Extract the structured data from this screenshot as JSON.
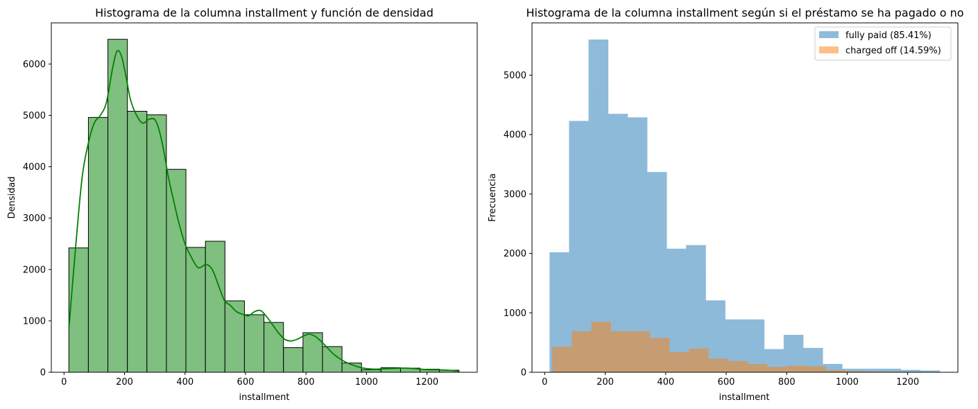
{
  "chart_data": [
    {
      "type": "bar",
      "title": "Histograma de la columna installment y función de densidad",
      "xlabel": "installment",
      "ylabel": "Densidad",
      "xlim": [
        -42,
        1366
      ],
      "ylim": [
        0,
        6800
      ],
      "xticks": [
        "0",
        "200",
        "400",
        "600",
        "800",
        "1000",
        "1200"
      ],
      "xtick_values": [
        0,
        200,
        400,
        600,
        800,
        1000,
        1200
      ],
      "yticks": [
        "0",
        "1000",
        "2000",
        "3000",
        "4000",
        "5000",
        "6000"
      ],
      "ytick_values": [
        0,
        1000,
        2000,
        3000,
        4000,
        5000,
        6000
      ],
      "bin_start": 16,
      "bin_width": 64.5,
      "values": [
        2420,
        4960,
        6480,
        5080,
        5010,
        3950,
        2430,
        2550,
        1390,
        1120,
        970,
        480,
        770,
        500,
        180,
        50,
        90,
        80,
        60,
        40
      ],
      "colors": {
        "bar": "#7fbf7f",
        "edge": "#000000",
        "kde": "#008000"
      },
      "kde": {
        "x": [
          16,
          40,
          60,
          80,
          100,
          120,
          140,
          160,
          175,
          190,
          205,
          220,
          240,
          260,
          280,
          300,
          315,
          330,
          345,
          360,
          380,
          400,
          420,
          440,
          455,
          470,
          490,
          510,
          530,
          550,
          570,
          590,
          610,
          630,
          650,
          670,
          690,
          710,
          730,
          750,
          770,
          790,
          810,
          830,
          850,
          870,
          890,
          910,
          930,
          950,
          970,
          990,
          1010,
          1030,
          1050,
          1070,
          1090,
          1110,
          1130,
          1150,
          1170,
          1190,
          1210,
          1230,
          1250,
          1270,
          1290,
          1306
        ],
        "y": [
          850,
          2550,
          3800,
          4450,
          4850,
          5000,
          5250,
          5900,
          6250,
          6150,
          5750,
          5300,
          5000,
          4850,
          4920,
          4920,
          4700,
          4300,
          3800,
          3400,
          2900,
          2500,
          2250,
          2050,
          2050,
          2100,
          2000,
          1700,
          1400,
          1300,
          1180,
          1130,
          1100,
          1180,
          1200,
          1080,
          920,
          760,
          640,
          610,
          640,
          700,
          740,
          700,
          600,
          480,
          360,
          270,
          200,
          150,
          110,
          80,
          65,
          60,
          65,
          70,
          75,
          80,
          80,
          75,
          65,
          55,
          50,
          48,
          45,
          40,
          30,
          20
        ]
      }
    },
    {
      "type": "bar",
      "title": "Histograma de la columna installment según si el préstamo se ha pagado o no",
      "xlabel": "installment",
      "ylabel": "Frecuencia",
      "xlim": [
        -42,
        1366
      ],
      "ylim": [
        0,
        5880
      ],
      "xticks": [
        "0",
        "200",
        "400",
        "600",
        "800",
        "1000",
        "1200"
      ],
      "xtick_values": [
        0,
        200,
        400,
        600,
        800,
        1000,
        1200
      ],
      "yticks": [
        "0",
        "1000",
        "2000",
        "3000",
        "4000",
        "5000"
      ],
      "ytick_values": [
        0,
        1000,
        2000,
        3000,
        4000,
        5000
      ],
      "legend_position": "top-right",
      "series": [
        {
          "name": "fully paid (85.41%)",
          "color": "#1f77b4",
          "opacity": 0.5,
          "bin_start": 16,
          "bin_width": 64.5,
          "values": [
            2020,
            4230,
            5600,
            4350,
            4290,
            3370,
            2080,
            2140,
            1210,
            890,
            890,
            390,
            630,
            410,
            140,
            60,
            60,
            60,
            40,
            30
          ]
        },
        {
          "name": "charged off (14.59%)",
          "color": "#ff7f0e",
          "opacity": 0.5,
          "bin_start": 25,
          "bin_width": 64.5,
          "values": [
            430,
            690,
            850,
            690,
            690,
            580,
            340,
            400,
            230,
            190,
            140,
            90,
            110,
            100,
            40,
            20,
            15,
            10,
            8,
            5
          ]
        }
      ]
    }
  ]
}
